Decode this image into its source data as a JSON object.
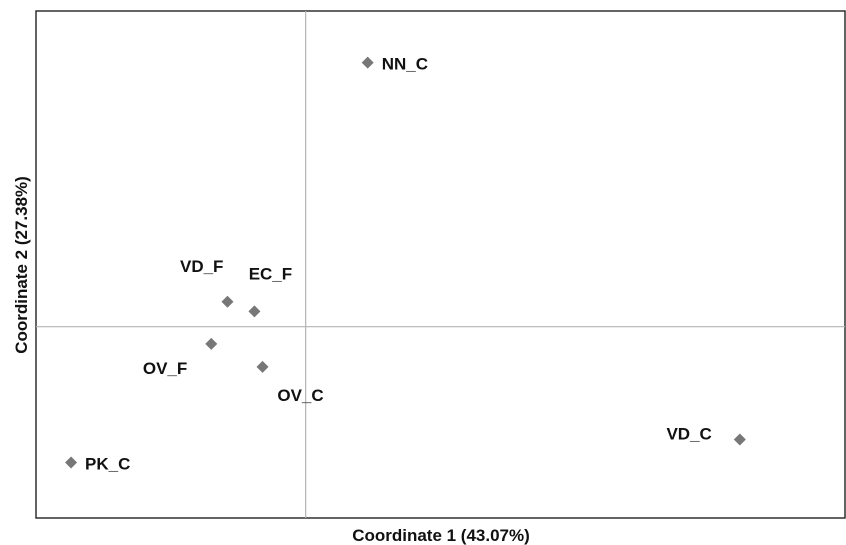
{
  "chart_data": {
    "type": "scatter",
    "xlabel": "Coordinate 1 (43.07%)",
    "ylabel": "Coordinate 2 (27.38%)",
    "xlim": [
      -1.0,
      2.0
    ],
    "ylim": [
      -1.0,
      1.65
    ],
    "reference_lines": {
      "x": 0,
      "y": 0
    },
    "grid": false,
    "marker": "diamond",
    "marker_color": "#777777",
    "points": [
      {
        "label": "NN_C",
        "x": 0.23,
        "y": 1.38
      },
      {
        "label": "VD_F",
        "x": -0.29,
        "y": 0.13
      },
      {
        "label": "EC_F",
        "x": -0.19,
        "y": 0.08
      },
      {
        "label": "OV_F",
        "x": -0.35,
        "y": -0.09
      },
      {
        "label": "OV_C",
        "x": -0.16,
        "y": -0.21
      },
      {
        "label": "VD_C",
        "x": 1.61,
        "y": -0.59
      },
      {
        "label": "PK_C",
        "x": -0.87,
        "y": -0.71
      }
    ]
  }
}
